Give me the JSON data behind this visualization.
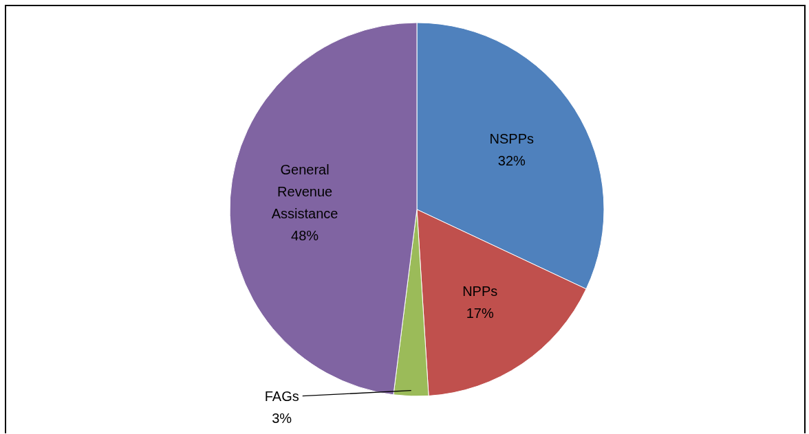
{
  "chart_data": {
    "type": "pie",
    "categories": [
      "NSPPs",
      "NPPs",
      "FAGs",
      "General Revenue Assistance"
    ],
    "values": [
      32,
      17,
      3,
      48
    ],
    "colors": [
      "#4f81bd",
      "#c0504d",
      "#9bbb59",
      "#8064a2"
    ],
    "value_labels": [
      "32%",
      "17%",
      "3%",
      "48%"
    ]
  }
}
